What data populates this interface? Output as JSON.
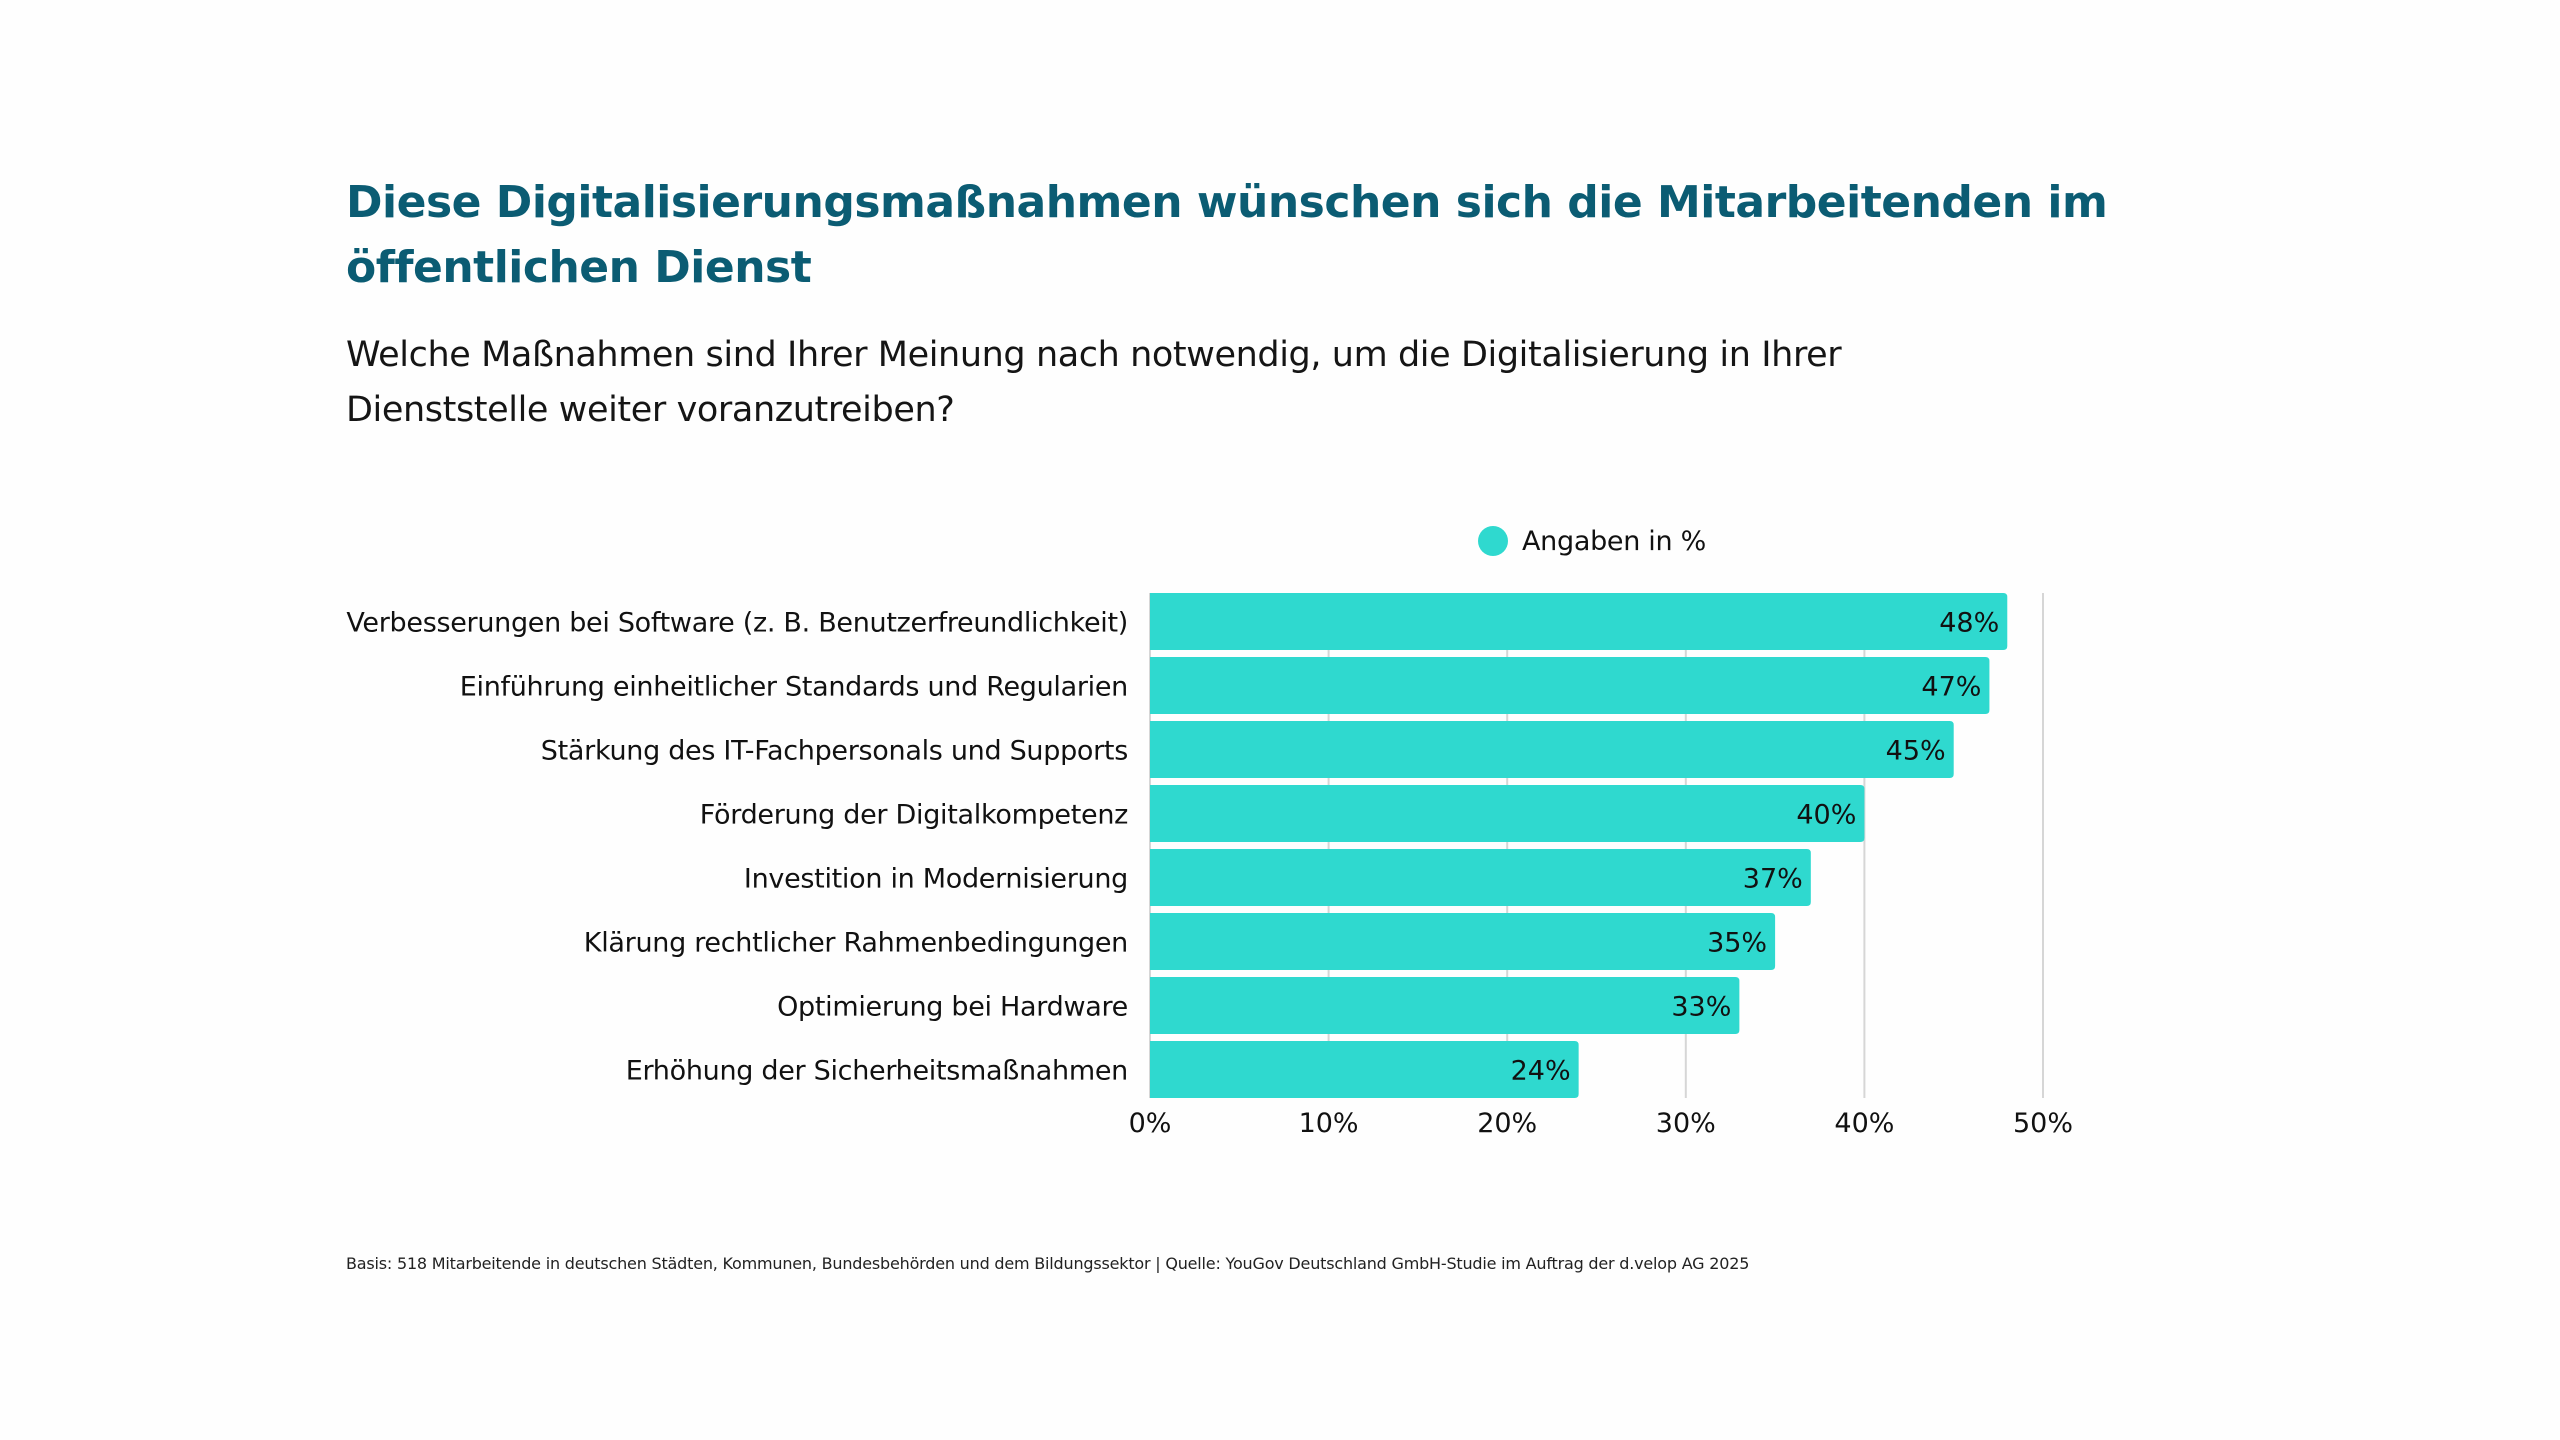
{
  "title": {
    "line1": "Diese Digitalisierungsmaßnahmen wünschen sich die Mitarbeitenden im",
    "line2": "öffentlichen Dienst"
  },
  "subtitle": {
    "line1": "Welche Maßnahmen sind Ihrer Meinung nach notwendig, um die Digitalisierung in Ihrer",
    "line2": "Dienststelle weiter voranzutreiben?"
  },
  "footer": "Basis: 518 Mitarbeitende in deutschen Städten, Kommunen, Bundesbehörden und dem Bildungssektor | Quelle: YouGov Deutschland GmbH-Studie im Auftrag der d.velop AG 2025",
  "colors": {
    "title": "#0b5c73",
    "bar": "#2fd9cf",
    "gridline": "#d6d6d6",
    "text": "#111111"
  },
  "chart_data": {
    "type": "bar",
    "orientation": "horizontal",
    "title": "Diese Digitalisierungsmaßnahmen wünschen sich die Mitarbeitenden im öffentlichen Dienst",
    "subtitle": "Welche Maßnahmen sind Ihrer Meinung nach notwendig, um die Digitalisierung in Ihrer Dienststelle weiter voranzutreiben?",
    "xlabel": "",
    "ylabel": "",
    "categories": [
      "Verbesserungen bei Software (z. B. Benutzerfreundlichkeit)",
      "Einführung einheitlicher Standards und Regularien",
      "Stärkung des IT-Fachpersonals und Supports",
      "Förderung der Digitalkompetenz",
      "Investition in Modernisierung",
      "Klärung rechtlicher Rahmenbedingungen",
      "Optimierung bei Hardware",
      "Erhöhung der Sicherheitsmaßnahmen"
    ],
    "series": [
      {
        "name": "Angaben in %",
        "values": [
          48,
          47,
          45,
          40,
          37,
          35,
          33,
          24
        ],
        "labels": [
          "48%",
          "47%",
          "45%",
          "40%",
          "37%",
          "35%",
          "33%",
          "24%"
        ]
      }
    ],
    "xlim": [
      0,
      50
    ],
    "xticks": [
      0,
      10,
      20,
      30,
      40,
      50
    ],
    "xtick_labels": [
      "0%",
      "10%",
      "20%",
      "30%",
      "40%",
      "50%"
    ],
    "grid": "vertical",
    "legend": "top-center",
    "value_labels": "inside-end"
  }
}
